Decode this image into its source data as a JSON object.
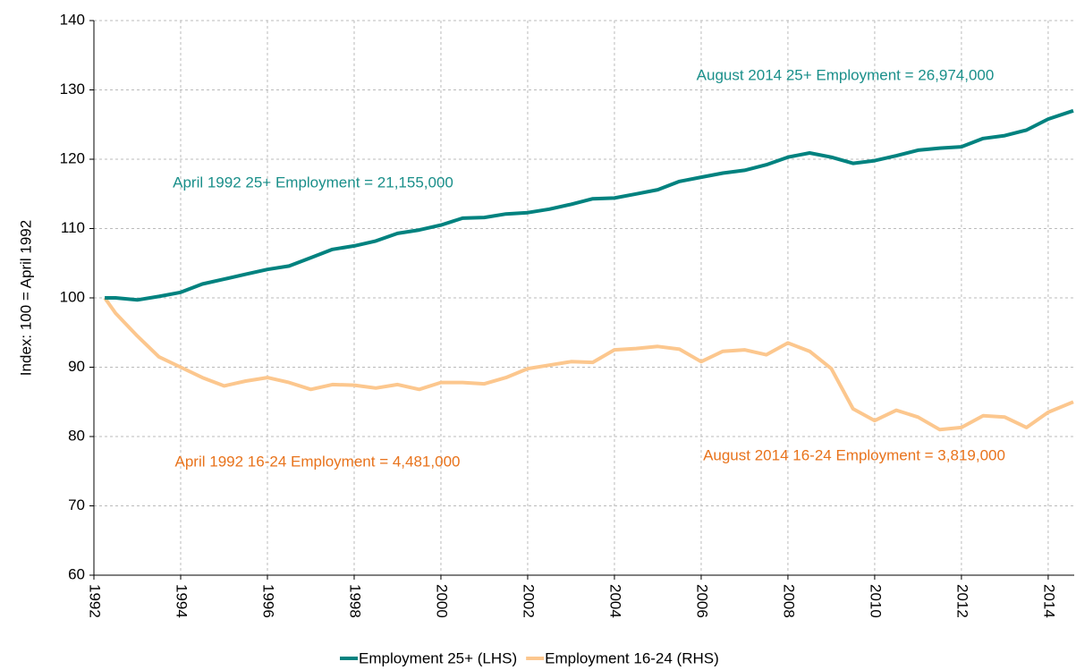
{
  "chart_data": {
    "type": "line",
    "y_label": "Index: 100 = April 1992",
    "xlim": [
      1992,
      2014.6
    ],
    "xticks": [
      1992,
      1994,
      1996,
      1998,
      2000,
      2002,
      2004,
      2006,
      2008,
      2010,
      2012,
      2014
    ],
    "ylim": [
      60,
      140
    ],
    "yticks": [
      60,
      70,
      80,
      90,
      100,
      110,
      120,
      130,
      140
    ],
    "grid": true,
    "legend": "bottom",
    "x": [
      1992.25,
      1992.5,
      1993,
      1993.5,
      1994,
      1994.5,
      1995,
      1995.5,
      1996,
      1996.5,
      1997,
      1997.5,
      1998,
      1998.5,
      1999,
      1999.5,
      2000,
      2000.5,
      2001,
      2001.5,
      2002,
      2002.5,
      2003,
      2003.5,
      2004,
      2004.5,
      2005,
      2005.5,
      2006,
      2006.5,
      2007,
      2007.5,
      2008,
      2008.5,
      2009,
      2009.5,
      2010,
      2010.5,
      2011,
      2011.5,
      2012,
      2012.5,
      2013,
      2013.5,
      2014,
      2014.58
    ],
    "series": [
      {
        "name": "Employment 25+ (LHS)",
        "color": "#00827f",
        "values": [
          100,
          100,
          99.7,
          100.2,
          100.8,
          102,
          102.7,
          103.4,
          104.1,
          104.6,
          105.8,
          107,
          107.5,
          108.2,
          109.3,
          109.8,
          110.5,
          111.5,
          111.6,
          112.1,
          112.3,
          112.8,
          113.5,
          114.3,
          114.4,
          115,
          115.6,
          116.8,
          117.4,
          118,
          118.4,
          119.2,
          120.3,
          120.9,
          120.3,
          119.4,
          119.8,
          120.5,
          121.3,
          121.6,
          121.8,
          123,
          123.4,
          124.2,
          125.8,
          127
        ]
      },
      {
        "name": "Employment 16-24 (RHS)",
        "color": "#fcc78e",
        "values": [
          100,
          97.8,
          94.5,
          91.5,
          90,
          88.5,
          87.3,
          88,
          88.5,
          87.8,
          86.8,
          87.5,
          87.4,
          87,
          87.5,
          86.8,
          87.8,
          87.8,
          87.6,
          88.5,
          89.8,
          90.3,
          90.8,
          90.7,
          92.5,
          92.7,
          93,
          92.6,
          90.8,
          92.3,
          92.5,
          91.8,
          93.5,
          92.3,
          89.8,
          84,
          82.3,
          83.8,
          82.8,
          81,
          81.3,
          83,
          82.8,
          81.3,
          83.5,
          85
        ]
      }
    ],
    "annotations": [
      {
        "text": "August 2014 25+ Employment = 26,974,000",
        "color": "#1a8f8a"
      },
      {
        "text": "April 1992 25+ Employment = 21,155,000",
        "color": "#1a8f8a"
      },
      {
        "text": "April 1992 16-24 Employment = 4,481,000",
        "color": "#e8731c"
      },
      {
        "text": "August 2014 16-24 Employment = 3,819,000",
        "color": "#e8731c"
      }
    ]
  }
}
